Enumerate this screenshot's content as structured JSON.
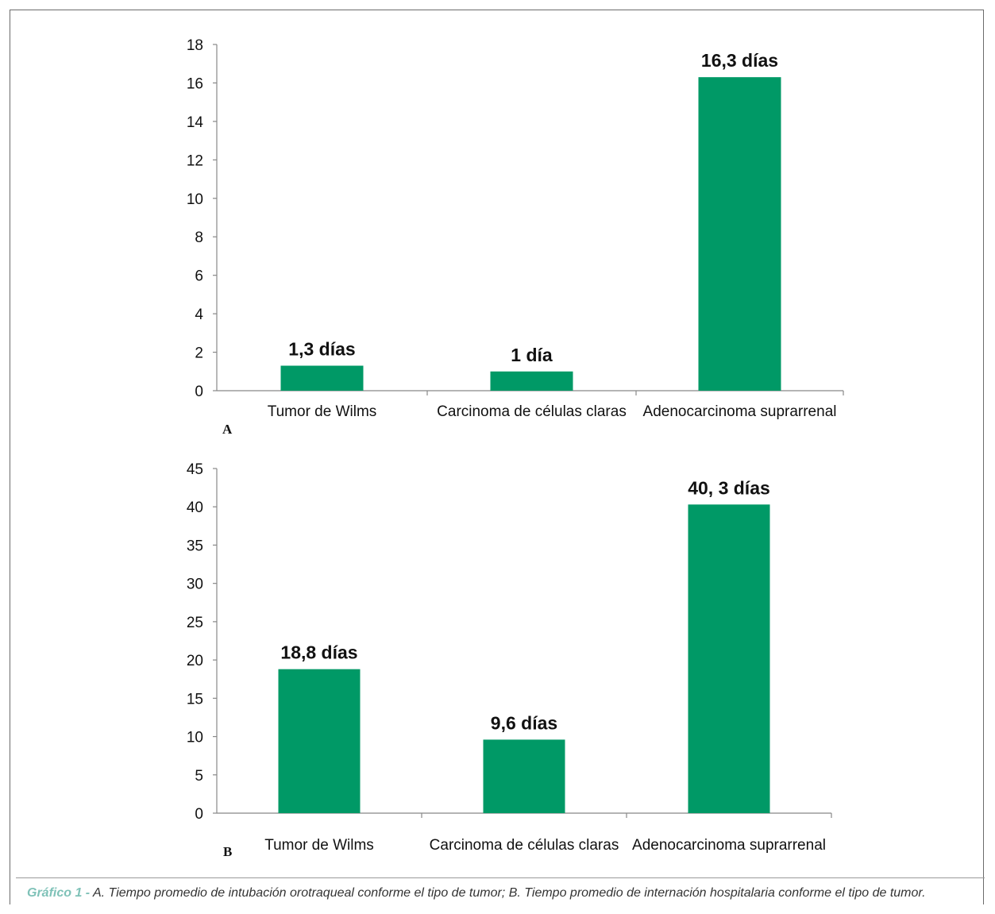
{
  "chart_data": [
    {
      "type": "bar",
      "panel": "A",
      "categories": [
        "Tumor de Wilms",
        "Carcinoma de células claras",
        "Adenocarcinoma suprarrenal"
      ],
      "values": [
        1.3,
        1,
        16.3
      ],
      "data_labels": [
        "1,3 días",
        "1 día",
        "16,3 días"
      ],
      "yticks": [
        "0",
        "2",
        "4",
        "6",
        "8",
        "10",
        "12",
        "14",
        "16",
        "18"
      ],
      "ylim": [
        0,
        18
      ],
      "grid": false,
      "color": "#009966"
    },
    {
      "type": "bar",
      "panel": "B",
      "categories": [
        "Tumor de Wilms",
        "Carcinoma de células claras",
        "Adenocarcinoma suprarrenal"
      ],
      "values": [
        18.8,
        9.6,
        40.3
      ],
      "data_labels": [
        "18,8 días",
        "9,6 días",
        "40, 3 días"
      ],
      "yticks": [
        "0",
        "5",
        "10",
        "15",
        "20",
        "25",
        "30",
        "35",
        "40",
        "45"
      ],
      "ylim": [
        0,
        45
      ],
      "grid": false,
      "color": "#009966"
    }
  ],
  "caption": {
    "lead": "Gráfico 1 -",
    "text": " A. Tiempo promedio de intubación orotraqueal conforme el tipo de tumor; B. Tiempo promedio de internación hospitalaria conforme el tipo de tumor."
  }
}
